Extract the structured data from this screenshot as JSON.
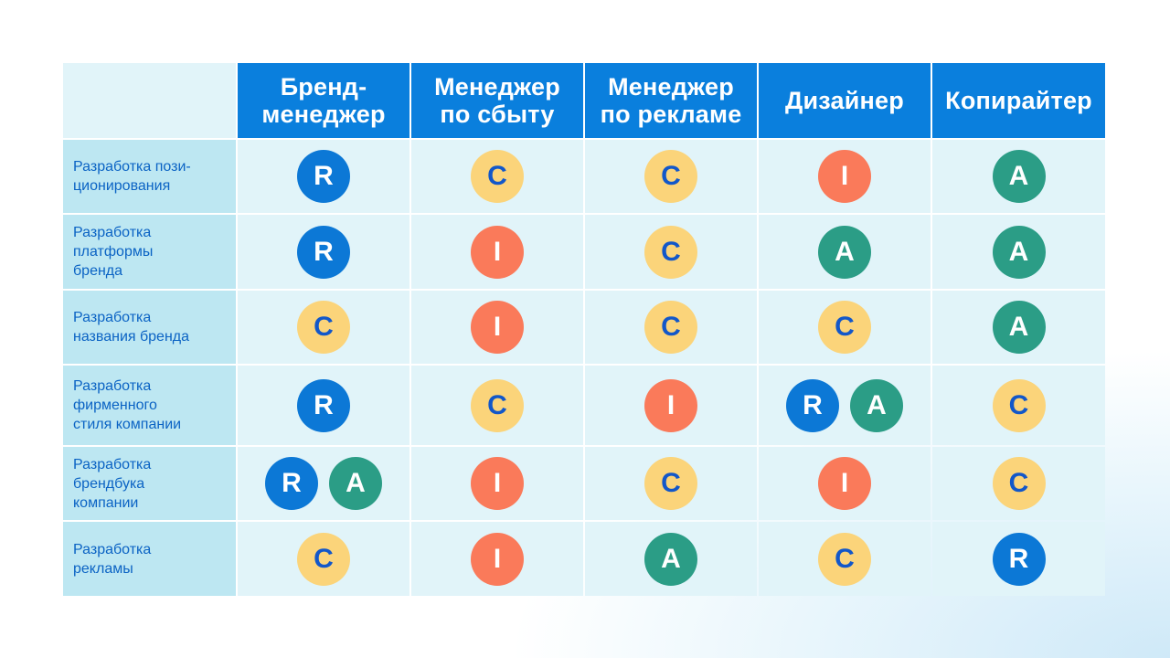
{
  "columns": [
    "Бренд-\nменеджер",
    "Менеджер\nпо сбыту",
    "Менеджер\nпо рекламе",
    "Дизайнер",
    "Копирайтер"
  ],
  "rows": [
    {
      "label": "Разработка пози-\nционирования",
      "cells": [
        [
          "R"
        ],
        [
          "C"
        ],
        [
          "C"
        ],
        [
          "I"
        ],
        [
          "A"
        ]
      ]
    },
    {
      "label": "Разработка\nплатформы\nбренда",
      "cells": [
        [
          "R"
        ],
        [
          "I"
        ],
        [
          "C"
        ],
        [
          "A"
        ],
        [
          "A"
        ]
      ]
    },
    {
      "label": "Разработка\nназвания бренда",
      "cells": [
        [
          "C"
        ],
        [
          "I"
        ],
        [
          "C"
        ],
        [
          "C"
        ],
        [
          "A"
        ]
      ]
    },
    {
      "label": "Разработка\nфирменного\nстиля компании",
      "cells": [
        [
          "R"
        ],
        [
          "C"
        ],
        [
          "I"
        ],
        [
          "R",
          "A"
        ],
        [
          "C"
        ]
      ]
    },
    {
      "label": "Разработка\nбрендбука\nкомпании",
      "cells": [
        [
          "R",
          "A"
        ],
        [
          "I"
        ],
        [
          "C"
        ],
        [
          "I"
        ],
        [
          "C"
        ]
      ]
    },
    {
      "label": "Разработка\nрекламы",
      "cells": [
        [
          "C"
        ],
        [
          "I"
        ],
        [
          "A"
        ],
        [
          "C"
        ],
        [
          "R"
        ]
      ]
    }
  ],
  "colors": {
    "R": "#0c78d6",
    "A": "#2b9d86",
    "I": "#fa7a5a",
    "C": "#fbd47a",
    "header": "#0a7fdd",
    "row_label_text": "#0b63c4"
  }
}
